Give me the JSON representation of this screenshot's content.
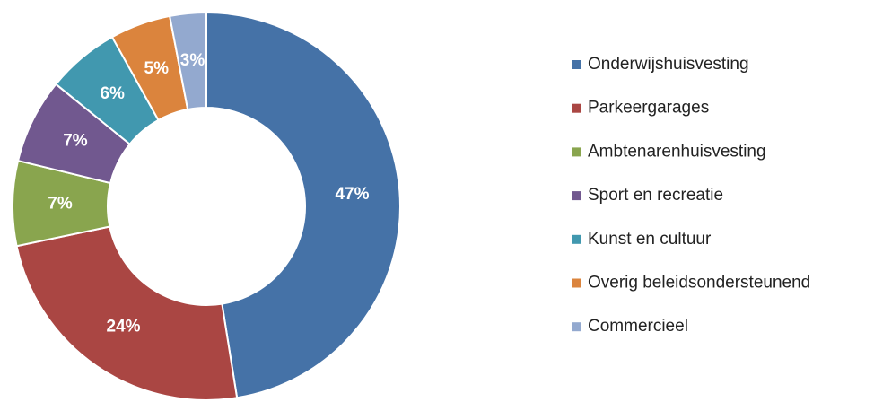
{
  "chart_data": {
    "type": "donut",
    "categories": [
      "Onderwijshuisvesting",
      "Parkeergarages",
      "Ambtenarenhuisvesting",
      "Sport en recreatie",
      "Kunst en cultuur",
      "Overig beleidsondersteunend",
      "Commercieel"
    ],
    "values": [
      47,
      24,
      7,
      7,
      6,
      5,
      3
    ],
    "value_labels": [
      "47%",
      "24%",
      "7%",
      "7%",
      "6%",
      "5%",
      "3%"
    ],
    "colors": [
      "#4572a7",
      "#aa4643",
      "#89a54e",
      "#71588f",
      "#4198af",
      "#db843d",
      "#93a9cf"
    ],
    "legend": "right"
  }
}
